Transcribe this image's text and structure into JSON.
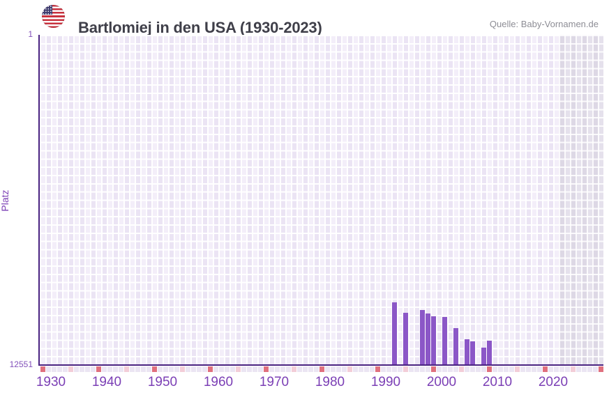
{
  "header": {
    "flag_icon": "us-flag-icon",
    "title": "Bartlomiej in den USA (1930-2023)",
    "source": "Quelle: Baby-Vornamen.de"
  },
  "chart_data": {
    "type": "bar",
    "title": "Bartlomiej in den USA (1930-2023)",
    "xlabel": "",
    "ylabel": "Platz",
    "legend": "none",
    "grid": true,
    "y_axis": {
      "top_label": "1",
      "bottom_label": "12551",
      "min": 1,
      "max": 12551,
      "inverted": true
    },
    "x_axis": {
      "grid_start_year": 1928,
      "grid_end_year": 2028,
      "tick_years": [
        1930,
        1940,
        1950,
        1960,
        1970,
        1980,
        1990,
        2000,
        2010,
        2020
      ]
    },
    "series": [
      {
        "name": "Platz",
        "points": [
          {
            "year": 1991,
            "rank": 10190
          },
          {
            "year": 1993,
            "rank": 10590
          },
          {
            "year": 1996,
            "rank": 10480
          },
          {
            "year": 1997,
            "rank": 10610
          },
          {
            "year": 1998,
            "rank": 10710
          },
          {
            "year": 2000,
            "rank": 10760
          },
          {
            "year": 2002,
            "rank": 11180
          },
          {
            "year": 2004,
            "rank": 11590
          },
          {
            "year": 2005,
            "rank": 11670
          },
          {
            "year": 2007,
            "rank": 11910
          },
          {
            "year": 2008,
            "rank": 11650
          }
        ]
      }
    ],
    "axis_markers": {
      "red_years": [
        1928,
        1938,
        1948,
        1958,
        1968,
        1978,
        1988,
        1998,
        2008,
        2018,
        2028
      ],
      "pink_years": [
        1933,
        1943,
        1953,
        1963,
        1973,
        1983,
        1993,
        2003,
        2013,
        2023
      ]
    },
    "no_data_region": {
      "start_year": 2021,
      "end_year": 2028
    },
    "colors": {
      "bar": "#8b57c7",
      "axis_line": "#4a2381",
      "tick_label": "#7b3fb5",
      "marker_red": "#e0707e",
      "marker_pink": "#f3cdd8",
      "grid_col_light": "#f3eef9",
      "grid_col_dark": "#ebe4f4",
      "nodata_col_light": "#e5e1ec",
      "nodata_col_dark": "#ddd8e5",
      "title_text": "#3f3f49",
      "source_text": "#8d8d95"
    }
  }
}
